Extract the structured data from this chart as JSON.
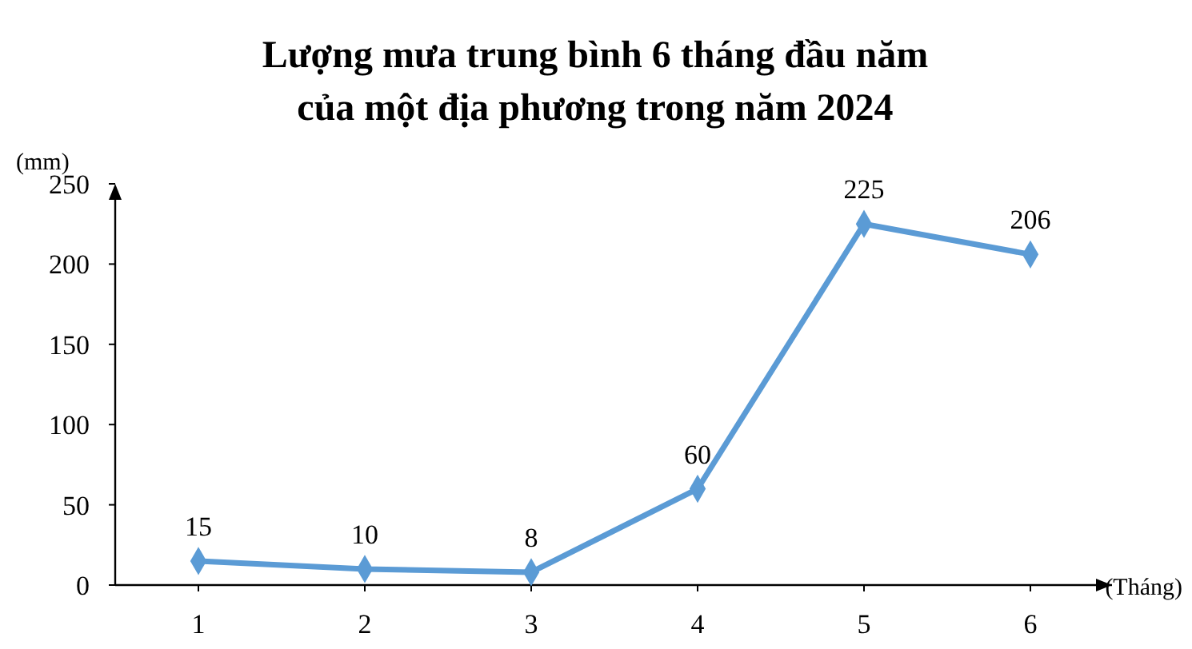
{
  "chart_data": {
    "type": "line",
    "title": "Lượng mưa trung bình 6 tháng đầu năm\ncủa một địa phương trong năm 2024",
    "xlabel": "(Tháng)",
    "ylabel": "(mm)",
    "categories": [
      "1",
      "2",
      "3",
      "4",
      "5",
      "6"
    ],
    "series": [
      {
        "color": "#5b9bd5",
        "values": [
          15,
          10,
          8,
          60,
          225,
          206
        ]
      }
    ],
    "ylim": [
      0,
      250
    ],
    "yticks": [
      0,
      50,
      100,
      150,
      200,
      250
    ],
    "data_labels": true,
    "marker": "diamond",
    "grid": false
  }
}
